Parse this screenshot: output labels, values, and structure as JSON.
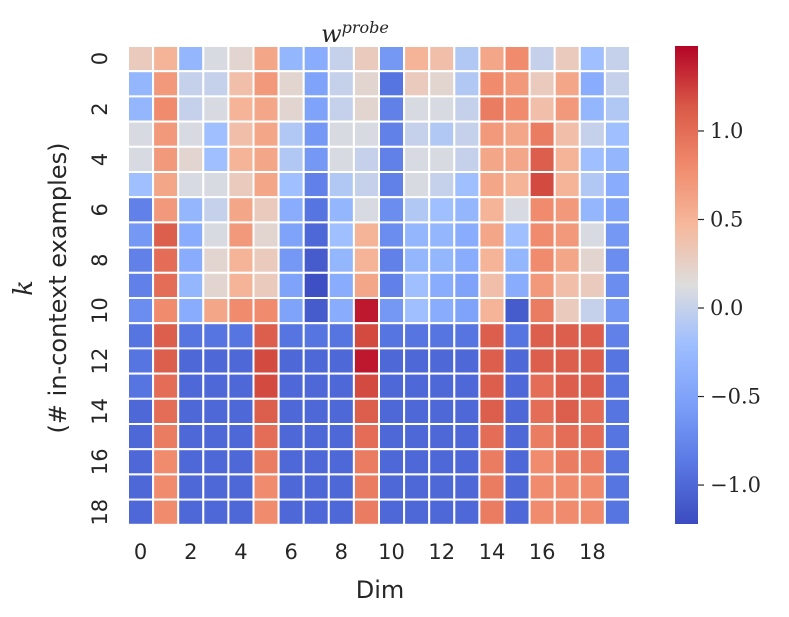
{
  "chart_data": {
    "type": "heatmap",
    "title": "w",
    "title_superscript": "probe",
    "xlabel": "Dim",
    "ylabel_main": "k",
    "ylabel_sub": "(# in-context examples)",
    "x_ticks": [
      "0",
      "2",
      "4",
      "6",
      "8",
      "10",
      "12",
      "14",
      "16",
      "18"
    ],
    "y_ticks": [
      "0",
      "2",
      "4",
      "6",
      "8",
      "10",
      "12",
      "14",
      "16",
      "18"
    ],
    "x_tick_indices": [
      0,
      2,
      4,
      6,
      8,
      10,
      12,
      14,
      16,
      18
    ],
    "y_tick_indices": [
      0,
      2,
      4,
      6,
      8,
      10,
      12,
      14,
      16,
      18
    ],
    "colorbar": {
      "range": [
        -1.22,
        1.48
      ],
      "ticks": [
        -1.0,
        -0.5,
        0.0,
        0.5,
        1.0
      ],
      "tick_labels": [
        "−1.0",
        "−0.5",
        "0.0",
        "0.5",
        "1.0"
      ],
      "colormap": "coolwarm"
    },
    "values": [
      [
        0.3,
        0.5,
        -0.3,
        0.1,
        0.2,
        0.6,
        -0.3,
        -0.4,
        0.0,
        0.3,
        -0.6,
        0.5,
        0.4,
        -0.1,
        0.6,
        0.8,
        0.0,
        0.3,
        -0.2,
        0.0
      ],
      [
        -0.3,
        0.7,
        0.0,
        0.0,
        0.4,
        0.7,
        0.2,
        -0.5,
        0.0,
        0.2,
        -0.9,
        0.3,
        0.2,
        -0.1,
        0.8,
        0.7,
        0.3,
        0.6,
        -0.4,
        0.0
      ],
      [
        -0.3,
        0.8,
        0.0,
        0.1,
        0.5,
        0.6,
        0.2,
        -0.5,
        0.0,
        0.2,
        -0.8,
        0.1,
        0.1,
        0.0,
        0.9,
        0.8,
        0.4,
        0.7,
        -0.3,
        -0.1
      ],
      [
        0.1,
        0.7,
        0.1,
        -0.2,
        0.4,
        0.6,
        -0.1,
        -0.6,
        0.1,
        0.1,
        -0.8,
        0.0,
        -0.1,
        0.0,
        0.7,
        0.6,
        0.9,
        0.4,
        0.0,
        -0.2
      ],
      [
        0.1,
        0.7,
        0.2,
        -0.2,
        0.5,
        0.6,
        -0.1,
        -0.6,
        0.1,
        0.0,
        -0.8,
        0.1,
        0.1,
        0.0,
        0.6,
        0.6,
        1.1,
        0.5,
        -0.2,
        -0.3
      ],
      [
        -0.2,
        0.6,
        0.1,
        0.1,
        0.3,
        0.6,
        -0.2,
        -0.8,
        -0.1,
        0.0,
        -0.8,
        0.1,
        0.0,
        -0.2,
        0.6,
        0.5,
        1.2,
        0.5,
        -0.1,
        -0.4
      ],
      [
        -0.8,
        0.7,
        -0.3,
        0.0,
        0.6,
        0.3,
        -0.4,
        -0.9,
        -0.3,
        0.1,
        -0.7,
        -0.1,
        -0.2,
        -0.3,
        0.5,
        0.1,
        0.8,
        0.7,
        -0.3,
        -0.5
      ],
      [
        -0.6,
        1.1,
        -0.4,
        0.1,
        0.7,
        0.2,
        -0.5,
        -1.0,
        -0.2,
        0.5,
        -0.7,
        -0.3,
        -0.3,
        -0.4,
        0.6,
        -0.2,
        0.8,
        0.7,
        0.1,
        -0.6
      ],
      [
        -0.8,
        1.0,
        -0.4,
        0.2,
        0.5,
        0.3,
        -0.6,
        -1.1,
        -0.3,
        0.5,
        -0.8,
        -0.3,
        -0.3,
        -0.4,
        0.5,
        -0.3,
        0.8,
        0.6,
        0.2,
        -0.7
      ],
      [
        -0.8,
        1.0,
        -0.3,
        0.2,
        0.5,
        0.3,
        -0.5,
        -1.2,
        -0.4,
        0.6,
        -0.8,
        -0.2,
        -0.4,
        -0.5,
        0.4,
        -0.4,
        0.7,
        0.4,
        0.3,
        -0.7
      ],
      [
        -0.7,
        0.8,
        -0.4,
        0.6,
        0.8,
        0.8,
        -0.5,
        -1.1,
        -0.4,
        1.4,
        -0.6,
        -0.2,
        -0.4,
        -0.5,
        0.5,
        -1.1,
        0.9,
        0.3,
        0.0,
        -0.6
      ],
      [
        -0.9,
        1.1,
        -0.9,
        -0.9,
        -0.9,
        1.1,
        -0.9,
        -0.9,
        -0.9,
        1.2,
        -0.9,
        -0.9,
        -0.9,
        -0.9,
        1.1,
        -0.9,
        1.1,
        1.1,
        1.1,
        -0.8
      ],
      [
        -0.9,
        1.1,
        -1.0,
        -1.0,
        -1.0,
        1.2,
        -1.0,
        -1.0,
        -1.0,
        1.4,
        -1.0,
        -1.0,
        -1.0,
        -1.0,
        1.1,
        -1.0,
        1.1,
        1.1,
        1.1,
        -0.9
      ],
      [
        -0.9,
        1.0,
        -1.0,
        -1.0,
        -1.0,
        1.2,
        -1.0,
        -1.0,
        -1.0,
        1.2,
        -1.0,
        -1.0,
        -1.0,
        -1.0,
        1.1,
        -1.0,
        1.0,
        1.1,
        1.1,
        -0.9
      ],
      [
        -1.0,
        1.0,
        -1.0,
        -1.0,
        -1.0,
        1.1,
        -1.0,
        -1.0,
        -1.0,
        1.1,
        -1.0,
        -1.0,
        -1.0,
        -1.0,
        1.1,
        -1.0,
        1.0,
        1.1,
        1.0,
        -0.9
      ],
      [
        -1.0,
        0.9,
        -1.0,
        -1.0,
        -1.0,
        1.0,
        -1.0,
        -1.0,
        -1.0,
        1.0,
        -1.0,
        -1.0,
        -1.0,
        -1.0,
        1.0,
        -1.0,
        0.9,
        1.0,
        1.0,
        -0.9
      ],
      [
        -1.0,
        0.8,
        -1.0,
        -1.0,
        -1.0,
        0.9,
        -1.0,
        -1.0,
        -1.0,
        0.9,
        -1.0,
        -1.0,
        -1.0,
        -1.0,
        0.9,
        -1.0,
        0.8,
        0.9,
        0.9,
        -0.9
      ],
      [
        -1.0,
        0.8,
        -1.0,
        -1.0,
        -1.0,
        0.8,
        -1.0,
        -1.0,
        -1.0,
        0.9,
        -1.0,
        -1.0,
        -1.0,
        -1.0,
        0.9,
        -1.0,
        0.8,
        0.8,
        0.8,
        -0.9
      ],
      [
        -1.0,
        0.8,
        -1.0,
        -1.0,
        -1.0,
        0.8,
        -1.0,
        -1.0,
        -1.0,
        0.9,
        -1.0,
        -1.0,
        -1.0,
        -1.0,
        0.9,
        -1.0,
        0.8,
        0.8,
        0.8,
        -0.9
      ]
    ]
  }
}
